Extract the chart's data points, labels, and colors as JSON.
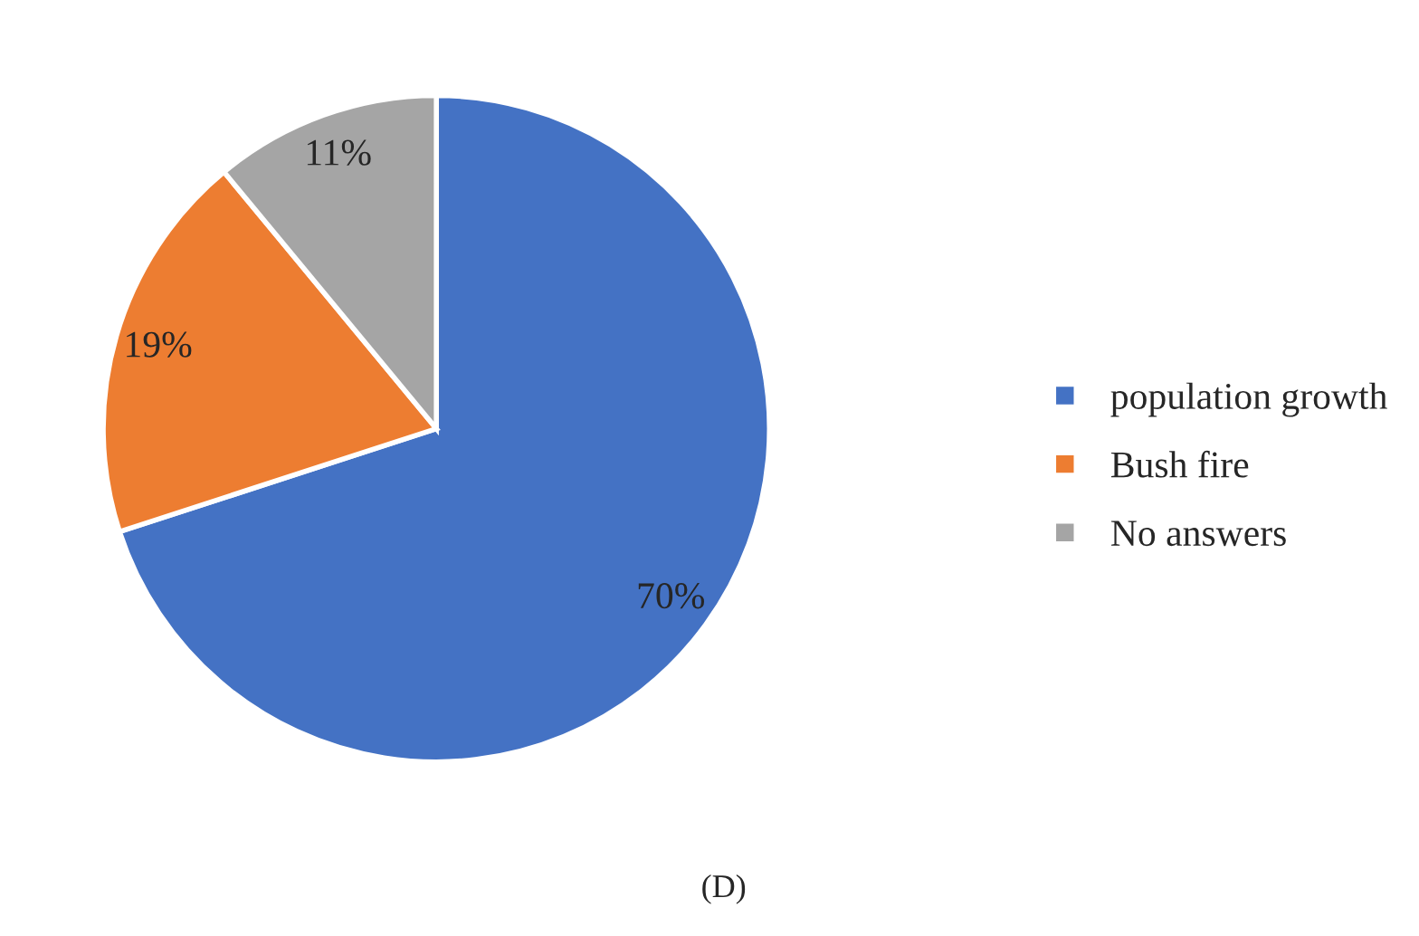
{
  "chart_data": {
    "type": "pie",
    "categories": [
      "population growth",
      "Bush fire",
      "No answers"
    ],
    "values": [
      70,
      19,
      11
    ],
    "value_labels": [
      "70%",
      "19%",
      "11%"
    ],
    "colors": [
      "#4472c4",
      "#ed7d31",
      "#a5a5a5"
    ],
    "legend": "right",
    "annotations": [
      "(D)"
    ]
  }
}
